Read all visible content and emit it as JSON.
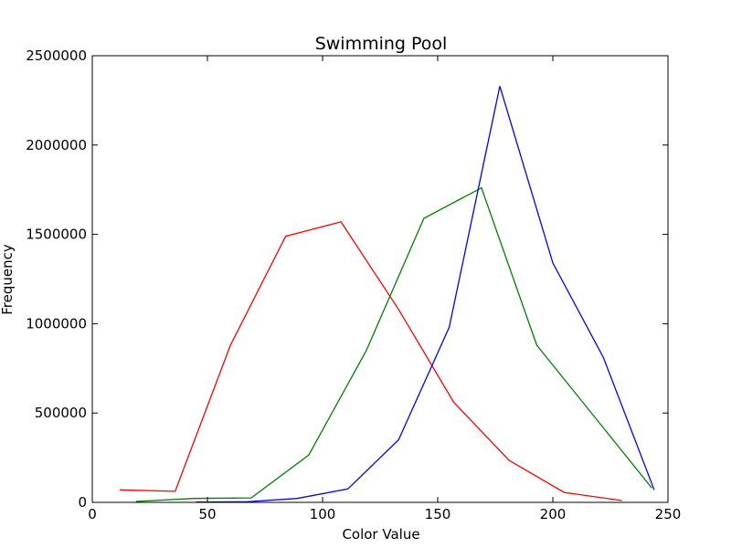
{
  "chart_data": {
    "type": "line",
    "title": "Swimming Pool",
    "xlabel": "Color Value",
    "ylabel": "Frequency",
    "xlim": [
      0,
      250
    ],
    "ylim": [
      0,
      2500000
    ],
    "xticks": [
      0,
      50,
      100,
      150,
      200,
      250
    ],
    "yticks": [
      0,
      500000,
      1000000,
      1500000,
      2000000,
      2500000
    ],
    "grid": false,
    "series": [
      {
        "color": "#ff0000",
        "x": [
          12,
          36,
          60,
          84,
          108,
          133,
          157,
          181,
          205,
          230
        ],
        "y": [
          70000,
          62000,
          880000,
          1490000,
          1570000,
          1080000,
          560000,
          235000,
          55000,
          10000
        ]
      },
      {
        "color": "#008000",
        "x": [
          19,
          44,
          69,
          94,
          119,
          144,
          169,
          193,
          218,
          243
        ],
        "y": [
          5000,
          22000,
          25000,
          265000,
          850000,
          1590000,
          1760000,
          880000,
          480000,
          80000
        ]
      },
      {
        "color": "#0000ff",
        "x": [
          45,
          67,
          89,
          111,
          133,
          155,
          177,
          200,
          222,
          244
        ],
        "y": [
          2000,
          3000,
          22000,
          75000,
          350000,
          980000,
          2330000,
          1340000,
          810000,
          70000
        ]
      }
    ]
  }
}
